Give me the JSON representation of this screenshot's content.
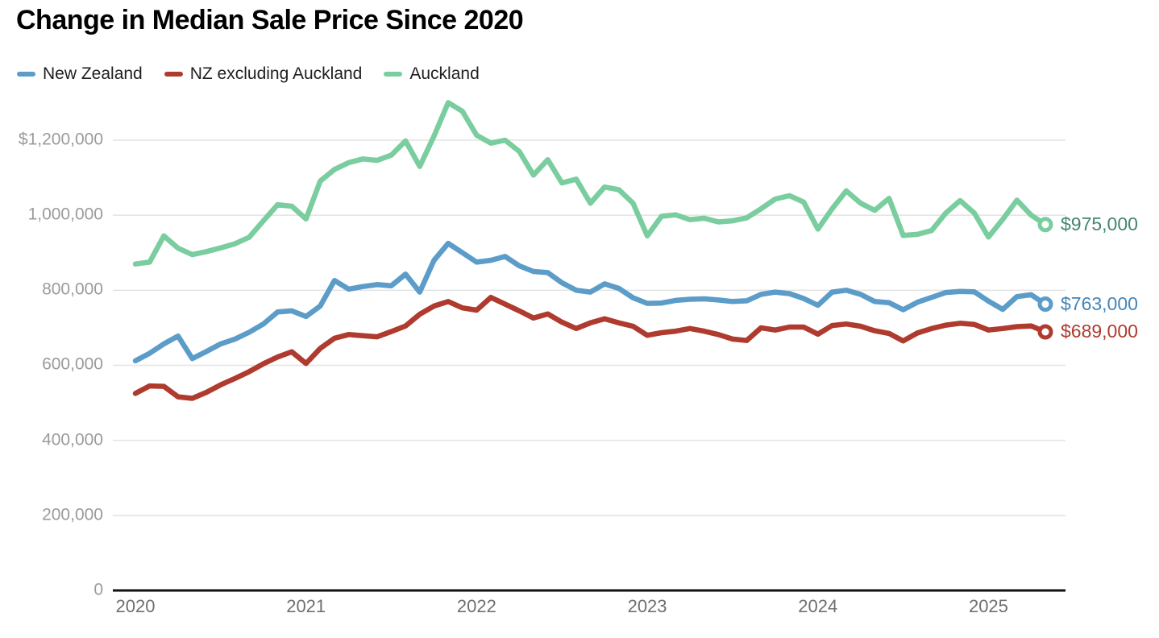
{
  "title": "Change in Median Sale Price Since 2020",
  "chart_data": {
    "type": "line",
    "x_range": {
      "from": "2020-01",
      "to": "2025-05",
      "interval": "monthly"
    },
    "x_axis": {
      "year_ticks": [
        "2020",
        "2021",
        "2022",
        "2023",
        "2024",
        "2025"
      ]
    },
    "y_axis": {
      "ticks": [
        {
          "label": "$1,200,000",
          "value": 1200000
        },
        {
          "label": "1,000,000",
          "value": 1000000
        },
        {
          "label": "800,000",
          "value": 800000
        },
        {
          "label": "600,000",
          "value": 600000
        },
        {
          "label": "400,000",
          "value": 400000
        },
        {
          "label": "200,000",
          "value": 200000
        },
        {
          "label": "0",
          "value": 0
        }
      ],
      "range": [
        0,
        1340000
      ]
    },
    "grid": true,
    "legend_position": "top-left",
    "series": [
      {
        "name": "New Zealand",
        "color": "#5b9cc9",
        "label_color": "#4385b8",
        "end_label": "$763,000",
        "values": [
          612000,
          632000,
          657000,
          678000,
          618000,
          637000,
          657000,
          670000,
          688000,
          710000,
          742000,
          745000,
          730000,
          758000,
          826000,
          803000,
          810000,
          815000,
          812000,
          843000,
          795000,
          880000,
          925000,
          900000,
          875000,
          880000,
          890000,
          865000,
          850000,
          847000,
          820000,
          800000,
          795000,
          817000,
          805000,
          780000,
          765000,
          766000,
          773000,
          776000,
          777000,
          774000,
          770000,
          772000,
          789000,
          795000,
          791000,
          778000,
          760000,
          795000,
          800000,
          789000,
          770000,
          767000,
          748000,
          768000,
          781000,
          794000,
          797000,
          796000,
          771000,
          749000,
          783000,
          788000,
          763000
        ]
      },
      {
        "name": "NZ excluding Auckland",
        "color": "#af3b2f",
        "label_color": "#b03a2e",
        "end_label": "$689,000",
        "values": [
          525000,
          545000,
          544000,
          516000,
          512000,
          528000,
          548000,
          565000,
          583000,
          604000,
          622000,
          636000,
          605000,
          645000,
          672000,
          682000,
          679000,
          676000,
          690000,
          705000,
          736000,
          758000,
          770000,
          753000,
          747000,
          781000,
          763000,
          745000,
          726000,
          737000,
          715000,
          698000,
          713000,
          724000,
          713000,
          704000,
          680000,
          687000,
          691000,
          698000,
          691000,
          682000,
          670000,
          666000,
          700000,
          694000,
          702000,
          702000,
          683000,
          706000,
          710000,
          704000,
          692000,
          685000,
          665000,
          686000,
          698000,
          707000,
          712000,
          709000,
          694000,
          698000,
          703000,
          705000,
          689000
        ]
      },
      {
        "name": "Auckland",
        "color": "#7acd9e",
        "label_color": "#42866a",
        "end_label": "$975,000",
        "values": [
          870000,
          875000,
          945000,
          912000,
          895000,
          903000,
          913000,
          924000,
          941000,
          985000,
          1028000,
          1024000,
          990000,
          1091000,
          1122000,
          1140000,
          1150000,
          1146000,
          1160000,
          1198000,
          1130000,
          1211000,
          1300000,
          1277000,
          1213000,
          1192000,
          1200000,
          1170000,
          1107000,
          1148000,
          1086000,
          1096000,
          1032000,
          1075000,
          1068000,
          1032000,
          945000,
          997000,
          1001000,
          988000,
          992000,
          982000,
          985000,
          993000,
          1017000,
          1043000,
          1052000,
          1035000,
          963000,
          1017000,
          1065000,
          1032000,
          1013000,
          1045000,
          946000,
          949000,
          959000,
          1006000,
          1039000,
          1006000,
          942000,
          989000,
          1040000,
          1000000,
          975000
        ]
      }
    ],
    "colors": {
      "grid": "#e3e3e3",
      "axis": "#111111",
      "y_tick_text": "#9b9b9b",
      "x_tick_text": "#6f6f6f"
    }
  }
}
